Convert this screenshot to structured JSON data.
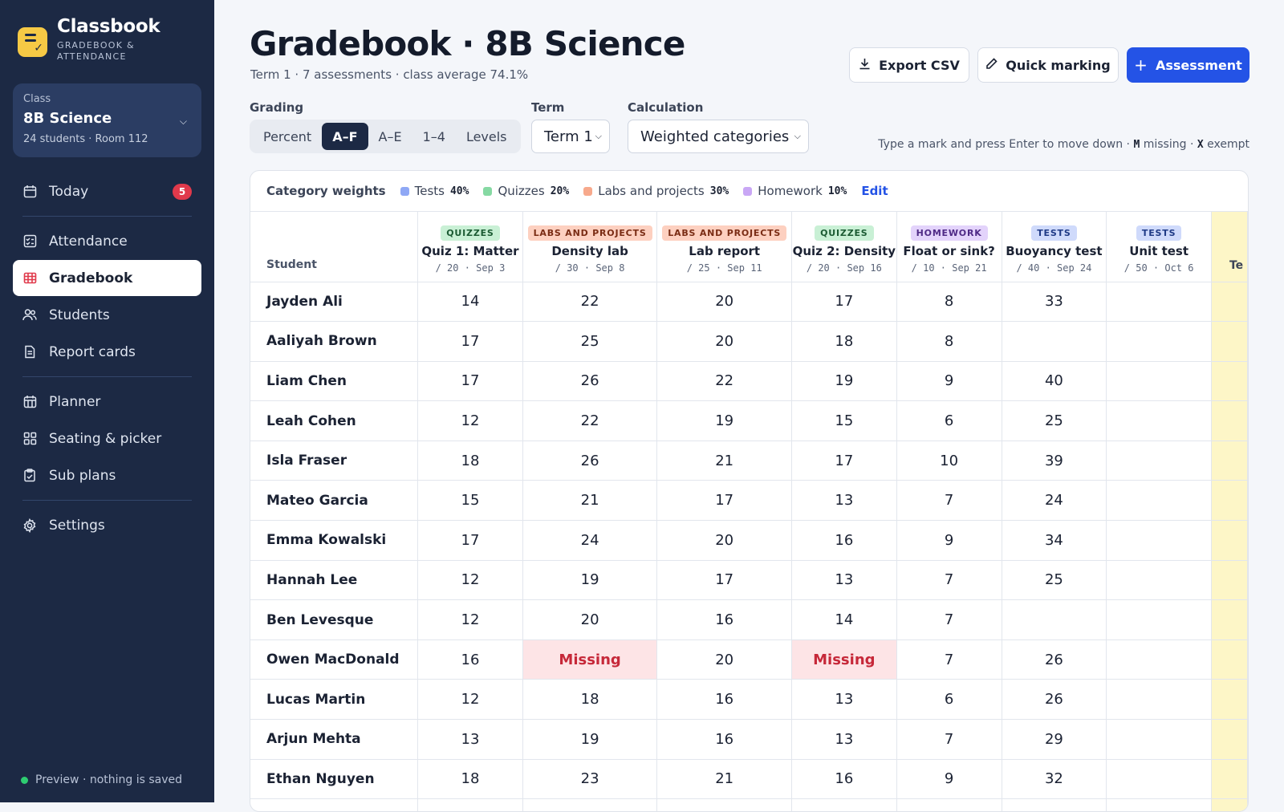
{
  "app": {
    "name": "Classbook",
    "subtitle": "GRADEBOOK & ATTENDANCE"
  },
  "class_selector": {
    "label": "Class",
    "name": "8B Science",
    "meta": "24 students · Room 112"
  },
  "nav": {
    "today": "Today",
    "today_badge": "5",
    "attendance": "Attendance",
    "gradebook": "Gradebook",
    "students": "Students",
    "report_cards": "Report cards",
    "planner": "Planner",
    "seating": "Seating & picker",
    "sub_plans": "Sub plans",
    "settings": "Settings"
  },
  "footer": {
    "preview": "Preview · nothing is saved"
  },
  "header": {
    "title": "Gradebook · 8B Science",
    "subtitle": "Term 1 · 7 assessments · class average 74.1%",
    "export_label": "Export CSV",
    "quick_label": "Quick marking",
    "add_label": "Assessment"
  },
  "controls": {
    "grading_label": "Grading",
    "grading_options": [
      "Percent",
      "A–F",
      "A–E",
      "1–4",
      "Levels"
    ],
    "grading_selected": "A–F",
    "term_label": "Term",
    "term_value": "Term 1",
    "calc_label": "Calculation",
    "calc_value": "Weighted categories",
    "hint_pre": "Type a mark and press Enter to move down · ",
    "hint_key_m": "M",
    "hint_mid": " missing · ",
    "hint_key_x": "X",
    "hint_post": " exempt"
  },
  "weights": {
    "label": "Category weights",
    "items": [
      {
        "name": "Tests",
        "pct": "40%",
        "color": "#8fa8f5"
      },
      {
        "name": "Quizzes",
        "pct": "20%",
        "color": "#86d9a3"
      },
      {
        "name": "Labs and projects",
        "pct": "30%",
        "color": "#f7a98c"
      },
      {
        "name": "Homework",
        "pct": "10%",
        "color": "#c9a7f5"
      }
    ],
    "edit": "Edit"
  },
  "categories": {
    "QUIZZES": {
      "bg": "#c9f0d5",
      "fg": "#1c5b33"
    },
    "LABS AND PROJECTS": {
      "bg": "#fdd0c0",
      "fg": "#7a2c14"
    },
    "HOMEWORK": {
      "bg": "#e3d3fb",
      "fg": "#4f2a86"
    },
    "TESTS": {
      "bg": "#cfdafb",
      "fg": "#1f3a86"
    }
  },
  "table": {
    "student_header": "Student",
    "extra_header": "Te",
    "assessments": [
      {
        "category": "QUIZZES",
        "name": "Quiz 1: Matter",
        "meta": "/ 20 · Sep 3"
      },
      {
        "category": "LABS AND PROJECTS",
        "name": "Density lab",
        "meta": "/ 30 · Sep 8"
      },
      {
        "category": "LABS AND PROJECTS",
        "name": "Lab report",
        "meta": "/ 25 · Sep 11"
      },
      {
        "category": "QUIZZES",
        "name": "Quiz 2: Density",
        "meta": "/ 20 · Sep 16"
      },
      {
        "category": "HOMEWORK",
        "name": "Float or sink?",
        "meta": "/ 10 · Sep 21"
      },
      {
        "category": "TESTS",
        "name": "Buoyancy test",
        "meta": "/ 40 · Sep 24"
      },
      {
        "category": "TESTS",
        "name": "Unit test",
        "meta": "/ 50 · Oct 6"
      }
    ],
    "rows": [
      {
        "student": "Jayden Ali",
        "marks": [
          "14",
          "22",
          "20",
          "17",
          "8",
          "33",
          ""
        ]
      },
      {
        "student": "Aaliyah Brown",
        "marks": [
          "17",
          "25",
          "20",
          "18",
          "8",
          "",
          ""
        ]
      },
      {
        "student": "Liam Chen",
        "marks": [
          "17",
          "26",
          "22",
          "19",
          "9",
          "40",
          ""
        ]
      },
      {
        "student": "Leah Cohen",
        "marks": [
          "12",
          "22",
          "19",
          "15",
          "6",
          "25",
          ""
        ]
      },
      {
        "student": "Isla Fraser",
        "marks": [
          "18",
          "26",
          "21",
          "17",
          "10",
          "39",
          ""
        ]
      },
      {
        "student": "Mateo Garcia",
        "marks": [
          "15",
          "21",
          "17",
          "13",
          "7",
          "24",
          ""
        ]
      },
      {
        "student": "Emma Kowalski",
        "marks": [
          "17",
          "24",
          "20",
          "16",
          "9",
          "34",
          ""
        ]
      },
      {
        "student": "Hannah Lee",
        "marks": [
          "12",
          "19",
          "17",
          "13",
          "7",
          "25",
          ""
        ]
      },
      {
        "student": "Ben Levesque",
        "marks": [
          "12",
          "20",
          "16",
          "14",
          "7",
          "",
          ""
        ]
      },
      {
        "student": "Owen MacDonald",
        "marks": [
          "16",
          "Missing",
          "20",
          "Missing",
          "7",
          "26",
          ""
        ]
      },
      {
        "student": "Lucas Martin",
        "marks": [
          "12",
          "18",
          "16",
          "13",
          "6",
          "26",
          ""
        ]
      },
      {
        "student": "Arjun Mehta",
        "marks": [
          "13",
          "19",
          "16",
          "13",
          "7",
          "29",
          ""
        ]
      },
      {
        "student": "Ethan Nguyen",
        "marks": [
          "18",
          "23",
          "21",
          "16",
          "9",
          "32",
          ""
        ]
      },
      {
        "student": "",
        "marks": [
          "",
          "",
          "",
          "",
          "",
          "",
          ""
        ]
      }
    ]
  }
}
